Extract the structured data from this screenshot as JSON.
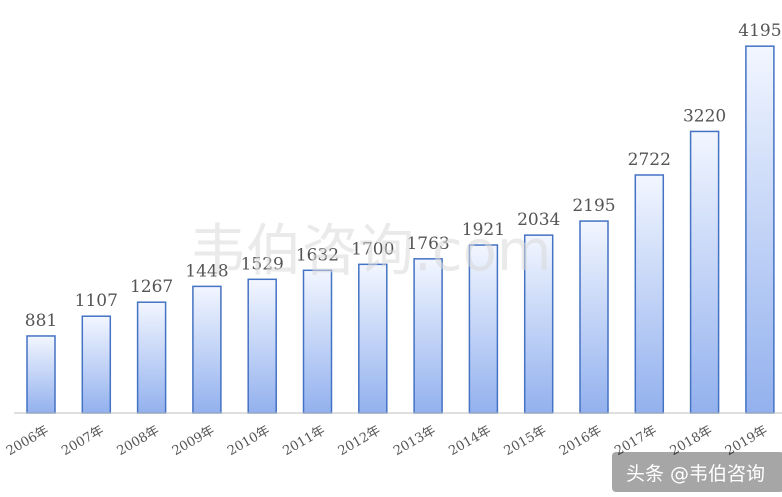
{
  "chart_data": {
    "type": "bar",
    "categories": [
      "2006年",
      "2007年",
      "2008年",
      "2009年",
      "2010年",
      "2011年",
      "2012年",
      "2013年",
      "2014年",
      "2015年",
      "2016年",
      "2017年",
      "2018年",
      "2019年"
    ],
    "values": [
      881,
      1107,
      1267,
      1448,
      1529,
      1632,
      1700,
      1763,
      1921,
      2034,
      2195,
      2722,
      3220,
      4195
    ],
    "ylim": [
      0,
      4300
    ],
    "grid": false,
    "colors": {
      "bar_top": "#f2f6ff",
      "bar_bottom": "#93b1ee",
      "bar_border": "#4472c4"
    }
  },
  "watermark": "韦伯咨询.com",
  "badge": "头条 @韦伯咨询"
}
